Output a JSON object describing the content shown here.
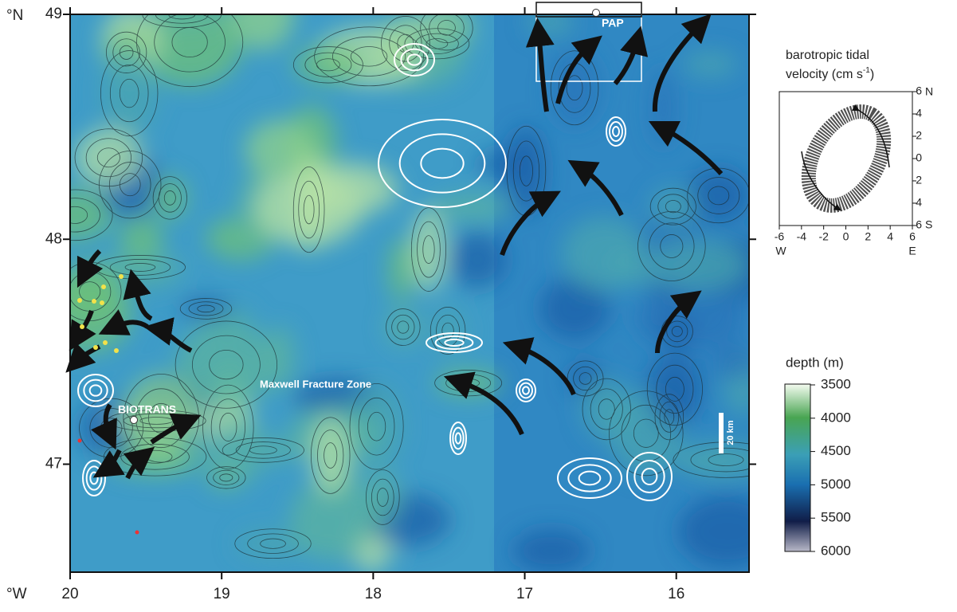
{
  "map": {
    "lat_unit": "°N",
    "lon_unit": "°W",
    "lat_lim": [
      46.52,
      49
    ],
    "lon_lim": [
      20,
      15.52
    ],
    "lat_ticks": [
      49,
      48,
      47
    ],
    "lon_ticks": [
      20,
      19,
      18,
      17,
      16
    ],
    "labels": {
      "pap": "PAP",
      "biotrans": "BIOTRANS",
      "fracture_zone": "Maxwell Fracture Zone",
      "scale_bar": "20 km"
    }
  },
  "inset": {
    "title_line1": "barotropic tidal",
    "title_line2": "velocity (cm s",
    "title_sup": "-1",
    "title_close": ")",
    "xlim": [
      -6,
      6
    ],
    "ylim": [
      -6,
      6
    ],
    "xticks": [
      -6,
      -4,
      -2,
      0,
      2,
      4,
      6
    ],
    "yticks": [
      6,
      4,
      2,
      0,
      -2,
      -4,
      -6
    ],
    "north": "N",
    "south": "S",
    "west": "W",
    "east": "E"
  },
  "depth_legend": {
    "title": "depth (m)",
    "lim": [
      3500,
      6000
    ],
    "ticks": [
      3500,
      4000,
      4500,
      5000,
      5500,
      6000
    ]
  }
}
